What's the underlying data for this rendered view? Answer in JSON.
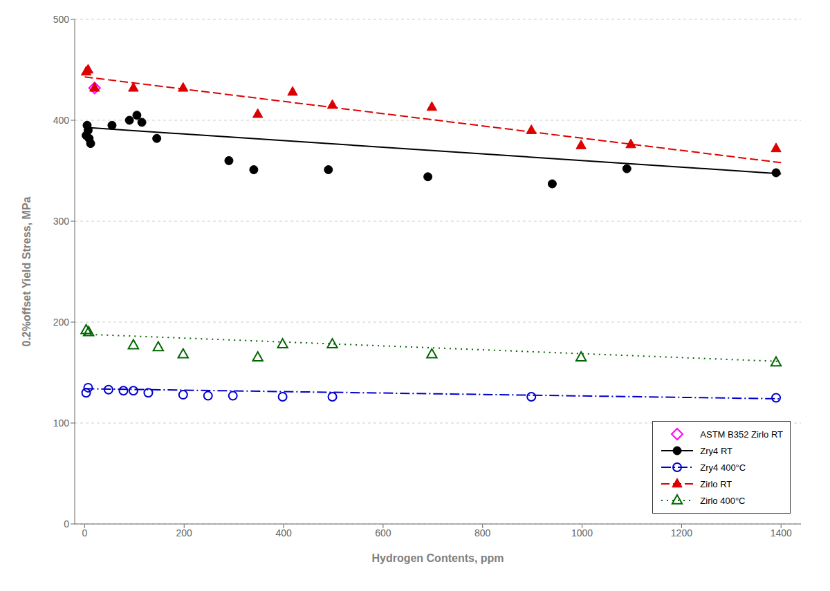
{
  "chart_data": {
    "type": "scatter",
    "xlabel": "Hydrogen Contents, ppm",
    "ylabel": "0.2%offset Yield Stress, MPa",
    "xlim": [
      -20,
      1440
    ],
    "ylim": [
      0,
      500
    ],
    "xticks": [
      0,
      200,
      400,
      600,
      800,
      1000,
      1200,
      1400
    ],
    "yticks": [
      0,
      100,
      200,
      300,
      400,
      500
    ],
    "grid": "y",
    "legend": "lower right",
    "series": [
      {
        "name": "ASTM B352 Zirlo RT",
        "color": "#ff00ff",
        "marker": "diamond-open",
        "x": [
          20
        ],
        "y": [
          432
        ]
      },
      {
        "name": "Zry4 RT",
        "color": "#000000",
        "marker": "circle",
        "line_style": "solid",
        "x": [
          3,
          5,
          7,
          9,
          12,
          55,
          90,
          105,
          115,
          145,
          290,
          340,
          490,
          690,
          940,
          1090,
          1390
        ],
        "y": [
          385,
          395,
          390,
          382,
          377,
          395,
          400,
          405,
          398,
          382,
          360,
          351,
          351,
          344,
          337,
          352,
          348
        ],
        "fit_x": [
          0,
          1400
        ],
        "fit_y": [
          393,
          347
        ]
      },
      {
        "name": "Zry4 400°C",
        "color": "#0000cc",
        "marker": "circle-open",
        "line_style": "dashdot",
        "x": [
          3,
          7,
          48,
          78,
          98,
          128,
          198,
          248,
          298,
          398,
          498,
          898,
          1390
        ],
        "y": [
          130,
          135,
          133,
          132,
          132,
          130,
          128,
          127,
          127,
          126,
          126,
          126,
          125
        ],
        "fit_x": [
          0,
          1400
        ],
        "fit_y": [
          134,
          124
        ]
      },
      {
        "name": "Zirlo RT",
        "color": "#dd0000",
        "marker": "triangle",
        "line_style": "dashed",
        "x": [
          3,
          7,
          20,
          98,
          198,
          348,
          418,
          498,
          698,
          898,
          998,
          1098,
          1390
        ],
        "y": [
          448,
          450,
          432,
          432,
          432,
          406,
          428,
          415,
          413,
          390,
          375,
          376,
          372
        ],
        "fit_x": [
          0,
          1400
        ],
        "fit_y": [
          443,
          358
        ]
      },
      {
        "name": "Zirlo 400°C",
        "color": "#006600",
        "marker": "triangle-open",
        "line_style": "dotted",
        "x": [
          3,
          8,
          98,
          148,
          198,
          348,
          398,
          498,
          698,
          998,
          1390
        ],
        "y": [
          192,
          190,
          177,
          175,
          168,
          165,
          178,
          178,
          168,
          165,
          160
        ],
        "fit_x": [
          0,
          1400
        ],
        "fit_y": [
          188,
          161
        ]
      }
    ]
  }
}
